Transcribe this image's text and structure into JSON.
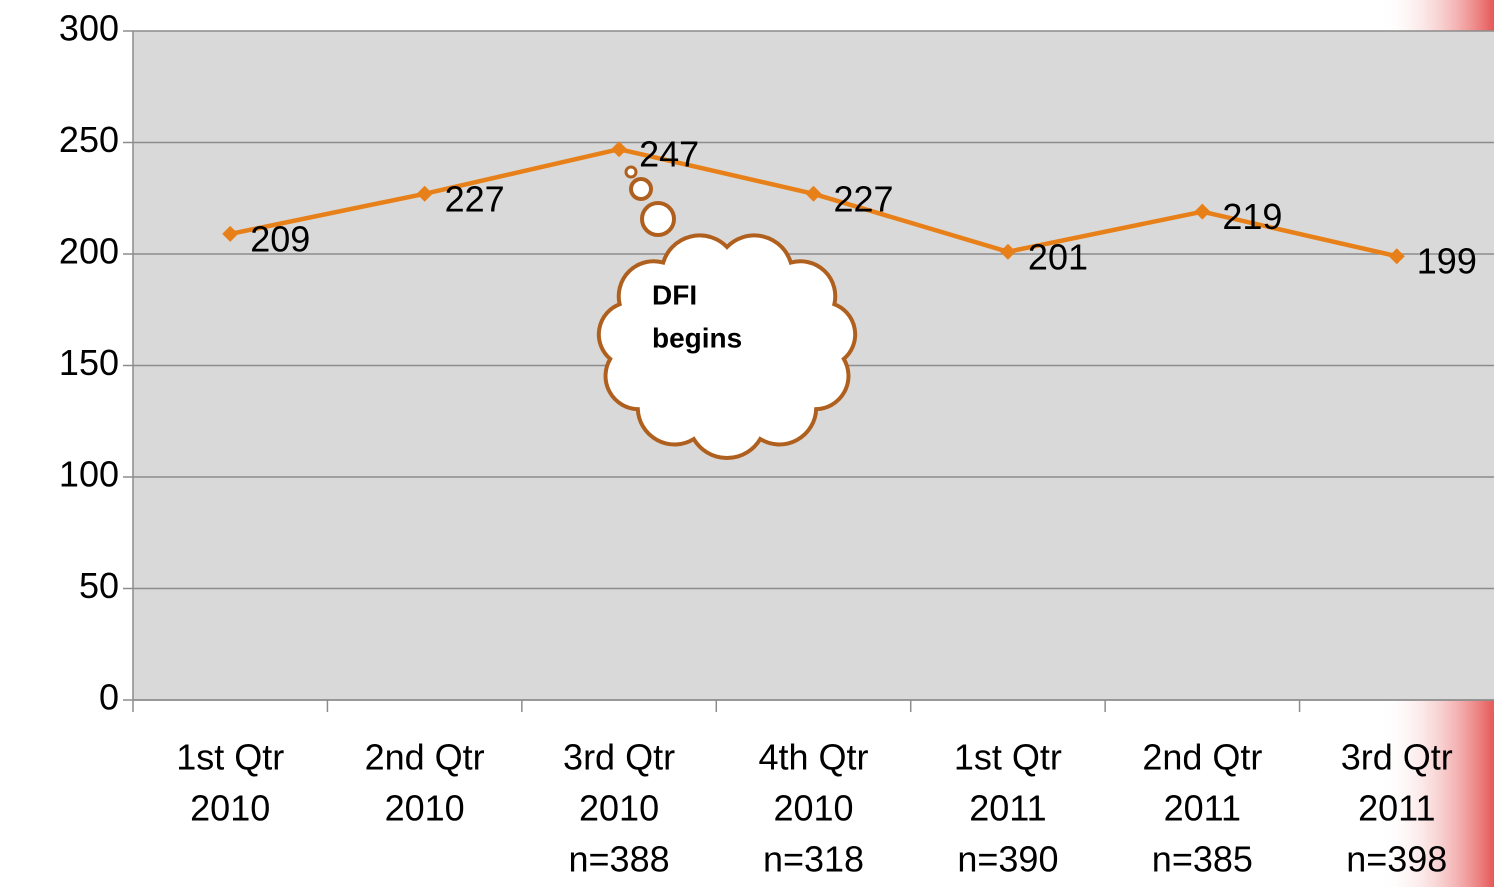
{
  "chart_data": {
    "type": "line",
    "categories": [
      [
        "1st Qtr",
        "2010"
      ],
      [
        "2nd Qtr",
        "2010"
      ],
      [
        "3rd Qtr",
        "2010",
        "n=388"
      ],
      [
        "4th Qtr",
        "2010",
        "n=318"
      ],
      [
        "1st Qtr",
        "2011",
        "n=390"
      ],
      [
        "2nd Qtr",
        "2011",
        "n=385"
      ],
      [
        "3rd Qtr",
        "2011",
        "n=398"
      ]
    ],
    "values": [
      209,
      227,
      247,
      227,
      201,
      219,
      199
    ],
    "color": "#e8801a",
    "ylim": [
      0,
      300
    ],
    "yticks": [
      0,
      50,
      100,
      150,
      200,
      250,
      300
    ],
    "grid": true,
    "annotation": [
      "DFI",
      "begins"
    ]
  }
}
